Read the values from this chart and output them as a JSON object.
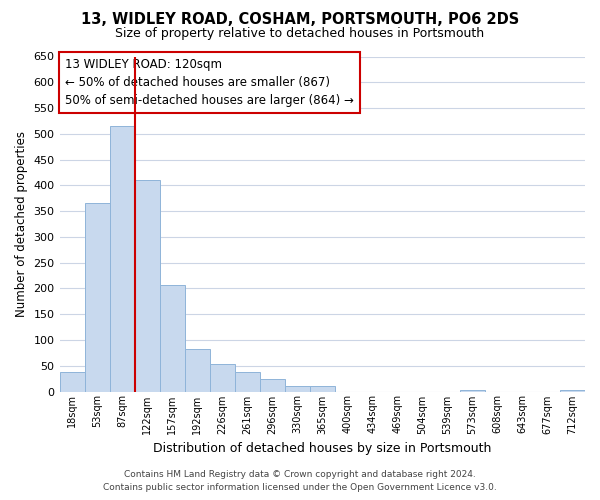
{
  "title": "13, WIDLEY ROAD, COSHAM, PORTSMOUTH, PO6 2DS",
  "subtitle": "Size of property relative to detached houses in Portsmouth",
  "xlabel": "Distribution of detached houses by size in Portsmouth",
  "ylabel": "Number of detached properties",
  "bin_labels": [
    "18sqm",
    "53sqm",
    "87sqm",
    "122sqm",
    "157sqm",
    "192sqm",
    "226sqm",
    "261sqm",
    "296sqm",
    "330sqm",
    "365sqm",
    "400sqm",
    "434sqm",
    "469sqm",
    "504sqm",
    "539sqm",
    "573sqm",
    "608sqm",
    "643sqm",
    "677sqm",
    "712sqm"
  ],
  "bar_heights": [
    38,
    365,
    515,
    410,
    207,
    83,
    53,
    37,
    24,
    10,
    10,
    0,
    0,
    0,
    0,
    0,
    2,
    0,
    0,
    0,
    2
  ],
  "bar_color": "#c8d9ee",
  "bar_edge_color": "#8fb4d9",
  "vline_x_index": 2.5,
  "vline_color": "#cc0000",
  "ylim": [
    0,
    650
  ],
  "yticks": [
    0,
    50,
    100,
    150,
    200,
    250,
    300,
    350,
    400,
    450,
    500,
    550,
    600,
    650
  ],
  "annotation_title": "13 WIDLEY ROAD: 120sqm",
  "annotation_line1": "← 50% of detached houses are smaller (867)",
  "annotation_line2": "50% of semi-detached houses are larger (864) →",
  "annotation_box_color": "#ffffff",
  "annotation_box_edge": "#cc0000",
  "footer_line1": "Contains HM Land Registry data © Crown copyright and database right 2024.",
  "footer_line2": "Contains public sector information licensed under the Open Government Licence v3.0.",
  "bg_color": "#ffffff",
  "grid_color": "#ccd5e5"
}
